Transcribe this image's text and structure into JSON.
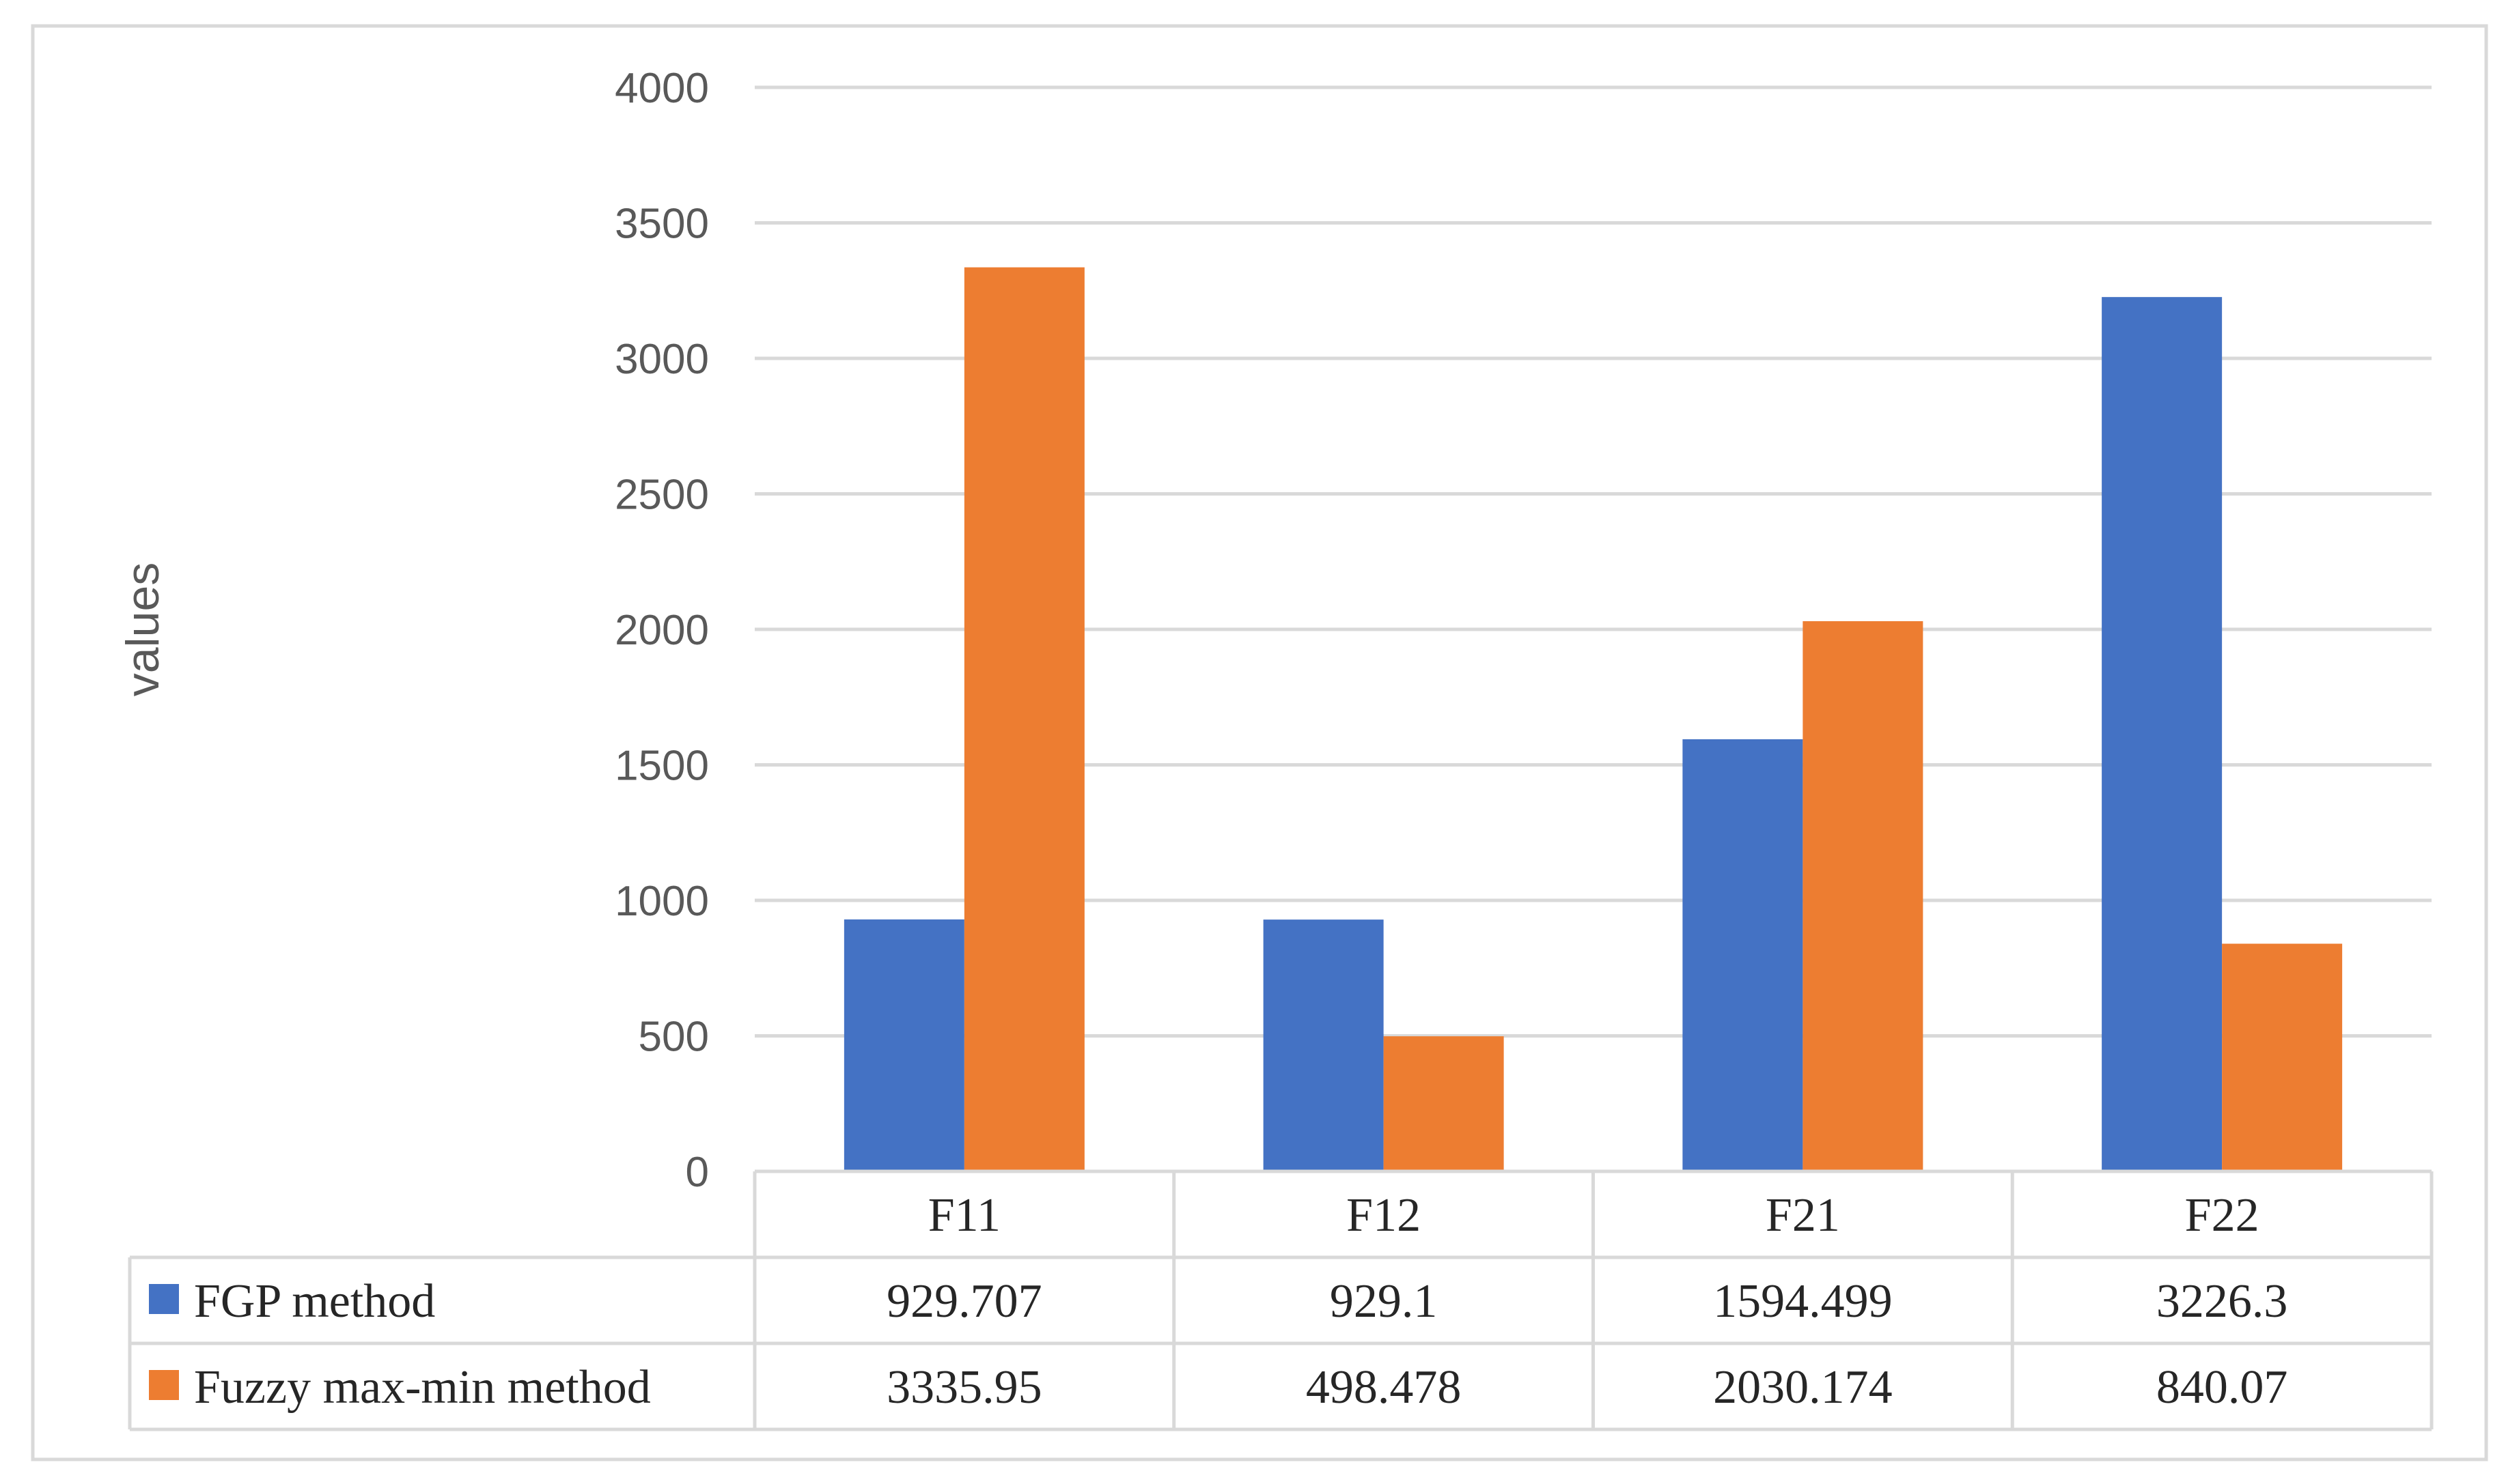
{
  "chart_data": {
    "type": "bar",
    "ylabel": "values",
    "ylim": [
      0,
      4000
    ],
    "yticks": [
      0,
      500,
      1000,
      1500,
      2000,
      2500,
      3000,
      3500,
      4000
    ],
    "categories": [
      "F11",
      "F12",
      "F21",
      "F22"
    ],
    "series": [
      {
        "name": "FGP method",
        "color": "#4472C4",
        "values": [
          929.707,
          929.1,
          1594.499,
          3226.3
        ],
        "labels": [
          "929.707",
          "929.1",
          "1594.499",
          "3226.3"
        ]
      },
      {
        "name": "Fuzzy max-min method",
        "color": "#ED7D31",
        "values": [
          3335.95,
          498.478,
          2030.174,
          840.07
        ],
        "labels": [
          "3335.95",
          "498.478",
          "2030.174",
          "840.07"
        ]
      }
    ],
    "grid": true,
    "legend": "data-table"
  }
}
